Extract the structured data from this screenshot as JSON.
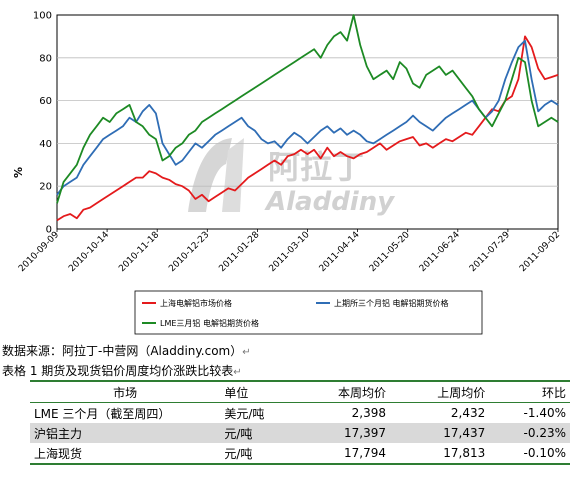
{
  "chart_data": {
    "type": "line",
    "ylabel": "%",
    "ylim": [
      0,
      100
    ],
    "yticks": [
      0,
      20,
      40,
      60,
      80,
      100
    ],
    "x_tick_labels": [
      "2010-09-09",
      "2010-10-14",
      "2010-11-18",
      "2010-12-23",
      "2011-01-28",
      "2011-03-10",
      "2011-04-14",
      "2011-05-20",
      "2011-06-24",
      "2011-07-29",
      "2011-09-02"
    ],
    "x_count": 77,
    "series": [
      {
        "name": "上海电解铝市场价格",
        "color": "#e41a1c",
        "values": [
          4,
          6,
          7,
          5,
          9,
          10,
          12,
          14,
          16,
          18,
          20,
          22,
          24,
          24,
          27,
          26,
          24,
          23,
          21,
          20,
          18,
          14,
          16,
          13,
          15,
          17,
          19,
          18,
          21,
          24,
          26,
          28,
          30,
          32,
          30,
          34,
          35,
          37,
          35,
          37,
          33,
          38,
          34,
          36,
          34,
          33,
          35,
          36,
          38,
          40,
          37,
          39,
          41,
          42,
          43,
          39,
          40,
          38,
          40,
          42,
          41,
          43,
          45,
          44,
          48,
          52,
          56,
          55,
          60,
          62,
          70,
          90,
          85,
          75,
          70,
          71,
          72
        ]
      },
      {
        "name": "上期所三个月铝 电解铝期货价格",
        "color": "#2f6db5",
        "values": [
          16,
          20,
          22,
          24,
          30,
          34,
          38,
          42,
          44,
          46,
          48,
          52,
          50,
          55,
          58,
          54,
          40,
          35,
          30,
          32,
          36,
          40,
          38,
          41,
          44,
          46,
          48,
          50,
          52,
          48,
          46,
          42,
          40,
          41,
          38,
          42,
          45,
          43,
          40,
          43,
          46,
          48,
          45,
          47,
          44,
          46,
          44,
          41,
          40,
          42,
          44,
          46,
          48,
          50,
          53,
          50,
          48,
          46,
          49,
          52,
          54,
          56,
          58,
          60,
          56,
          52,
          55,
          60,
          70,
          78,
          85,
          88,
          70,
          55,
          58,
          60,
          58
        ]
      },
      {
        "name": "LME三月铝 电解铝期货价格",
        "color": "#1d8a24",
        "values": [
          12,
          22,
          26,
          30,
          38,
          44,
          48,
          52,
          50,
          54,
          56,
          58,
          50,
          48,
          44,
          42,
          32,
          34,
          38,
          40,
          44,
          46,
          50,
          52,
          54,
          56,
          58,
          60,
          62,
          64,
          66,
          68,
          70,
          72,
          74,
          76,
          78,
          80,
          82,
          84,
          80,
          86,
          90,
          92,
          88,
          100,
          86,
          76,
          70,
          72,
          74,
          70,
          78,
          75,
          68,
          66,
          72,
          74,
          76,
          72,
          74,
          70,
          66,
          62,
          56,
          52,
          48,
          54,
          60,
          70,
          80,
          78,
          60,
          48,
          50,
          52,
          50
        ]
      }
    ]
  },
  "source": {
    "label": "数据来源：阿拉丁-中营网（Aladdiny.com）"
  },
  "table": {
    "caption": "表格 1 期货及现货铝价周度均价涨跌比较表",
    "headers": {
      "market": "市场",
      "unit": "单位",
      "this_week": "本周均价",
      "last_week": "上周均价",
      "change": "环比"
    },
    "rows": [
      {
        "market": "LME 三个月（截至周四）",
        "unit": "美元/吨",
        "this_week": "2,398",
        "last_week": "2,432",
        "change": "-1.40%"
      },
      {
        "market": "沪铝主力",
        "unit": "元/吨",
        "this_week": "17,397",
        "last_week": "17,437",
        "change": "-0.23%"
      },
      {
        "market": "上海现货",
        "unit": "元/吨",
        "this_week": "17,794",
        "last_week": "17,813",
        "change": "-0.10%"
      }
    ]
  },
  "watermark": {
    "cn": "阿拉丁",
    "en": "Aladdiny"
  }
}
